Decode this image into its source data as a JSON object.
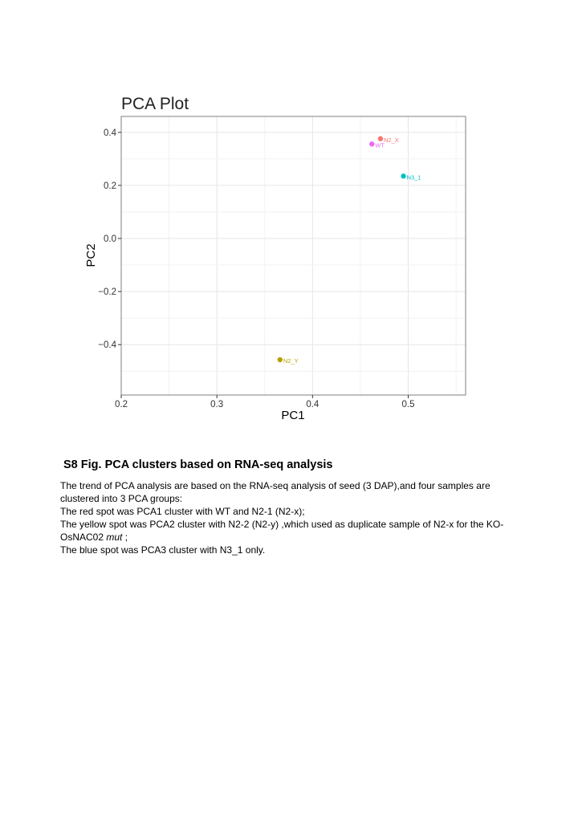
{
  "chart_data": {
    "type": "scatter",
    "title": "PCA Plot",
    "xlabel": "PC1",
    "ylabel": "PC2",
    "xlim": [
      0.2,
      0.56
    ],
    "ylim": [
      -0.59,
      0.46
    ],
    "xticks": [
      0.2,
      0.3,
      0.4,
      0.5
    ],
    "xtick_labels": [
      "0.2",
      "0.3",
      "0.4",
      "0.5"
    ],
    "yticks": [
      0.4,
      0.2,
      0.0,
      -0.2,
      -0.4
    ],
    "ytick_labels": [
      "0.4",
      "0.2",
      "0.0",
      "−0.2",
      "−0.4"
    ],
    "grid": true,
    "points": [
      {
        "label": "N2_X",
        "x": 0.471,
        "y": 0.376,
        "color": "#F8766D"
      },
      {
        "label": "WT",
        "x": 0.462,
        "y": 0.356,
        "color": "#E76BF3"
      },
      {
        "label": "N3_1",
        "x": 0.495,
        "y": 0.235,
        "color": "#00BFC4"
      },
      {
        "label": "N2_Y",
        "x": 0.366,
        "y": -0.457,
        "color": "#B79F00"
      }
    ]
  },
  "caption": {
    "title": "S8 Fig. PCA clusters based on RNA-seq analysis",
    "lines": [
      "The trend of PCA analysis are based on the RNA-seq analysis of seed (3 DAP),and four samples are clustered into 3 PCA groups:",
      "The red spot was PCA1 cluster with WT and N2-1 (N2-x);",
      "The yellow spot was PCA2 cluster with N2-2 (N2-y) ,which used as duplicate sample of N2-x for the KO-OsNAC02",
      "The blue spot was PCA3 cluster with N3_1 only."
    ],
    "italic_word": "mut",
    "line3_suffix": " ;"
  }
}
